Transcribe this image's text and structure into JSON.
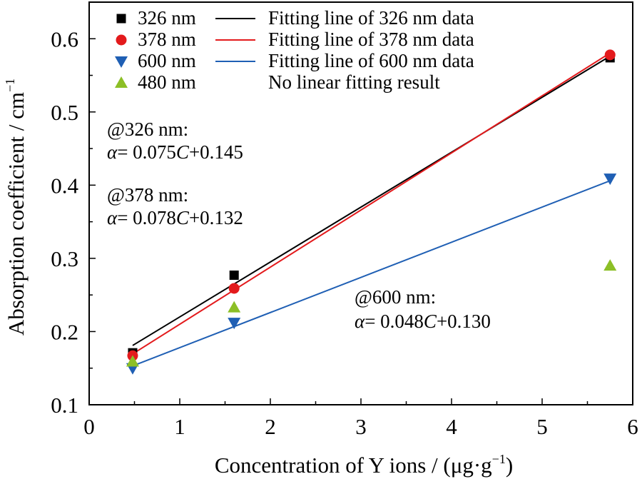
{
  "chart_data": {
    "type": "scatter",
    "xlabel": "Concentration of Y ions / (μg·g",
    "xlabel_sup": "−1",
    "xlabel_end": ")",
    "ylabel": "Absorption coefficient / cm",
    "ylabel_sup": "−1",
    "xlim": [
      0,
      6
    ],
    "ylim": [
      0.1,
      0.65
    ],
    "xticks": [
      0,
      1,
      2,
      3,
      4,
      5,
      6
    ],
    "yticks": [
      0.1,
      0.2,
      0.3,
      0.4,
      0.5,
      0.6
    ],
    "xtick_labels": [
      "0",
      "1",
      "2",
      "3",
      "4",
      "5",
      "6"
    ],
    "ytick_labels": [
      "0.1",
      "0.2",
      "0.3",
      "0.4",
      "0.5",
      "0.6"
    ],
    "grid": false,
    "legend_position": "top-left",
    "series": [
      {
        "name": "326 nm",
        "marker": "square",
        "color": "#000000",
        "x": [
          0.48,
          1.6,
          5.75
        ],
        "y": [
          0.171,
          0.277,
          0.574
        ]
      },
      {
        "name": "378 nm",
        "marker": "circle",
        "color": "#e31a1c",
        "x": [
          0.48,
          1.6,
          5.75
        ],
        "y": [
          0.167,
          0.259,
          0.578
        ]
      },
      {
        "name": "600 nm",
        "marker": "triangle-down",
        "color": "#1f5fb4",
        "x": [
          0.48,
          1.6,
          5.75
        ],
        "y": [
          0.15,
          0.212,
          0.409
        ]
      },
      {
        "name": "480 nm",
        "marker": "triangle-up",
        "color": "#8cbf26",
        "x": [
          0.48,
          1.6,
          5.75
        ],
        "y": [
          0.159,
          0.233,
          0.29
        ]
      }
    ],
    "fit_lines": [
      {
        "name": "Fitting line of 326 nm data",
        "color": "#000000",
        "slope": 0.075,
        "intercept": 0.145,
        "x_range": [
          0.48,
          5.75
        ]
      },
      {
        "name": "Fitting line of 378 nm data",
        "color": "#e31a1c",
        "slope": 0.078,
        "intercept": 0.132,
        "x_range": [
          0.48,
          5.75
        ]
      },
      {
        "name": "Fitting line of 600 nm data",
        "color": "#1f5fb4",
        "slope": 0.048,
        "intercept": 0.13,
        "x_range": [
          0.48,
          5.75
        ]
      }
    ],
    "legend_note": "No linear fitting result",
    "annotations": [
      {
        "label": "@326 nm:",
        "eq_alpha": "α",
        "eq_mid": "= 0.075",
        "eq_var": "C",
        "eq_tail": "+0.145"
      },
      {
        "label": "@378 nm:",
        "eq_alpha": "α",
        "eq_mid": "= 0.078",
        "eq_var": "C",
        "eq_tail": "+0.132"
      },
      {
        "label": "@600 nm:",
        "eq_alpha": "α",
        "eq_mid": "= 0.048",
        "eq_var": "C",
        "eq_tail": "+0.130"
      }
    ]
  }
}
